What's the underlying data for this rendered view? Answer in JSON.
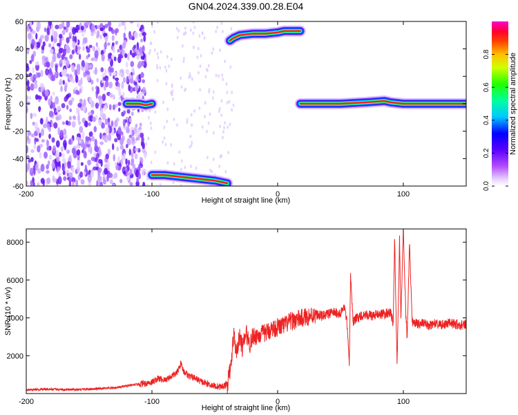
{
  "title": "GN04.2024.339.00.28.E04",
  "chart_data": [
    {
      "type": "heatmap",
      "xlabel": "Height of straight line (km)",
      "ylabel": "Frequency (Hz)",
      "xlim": [
        -200,
        150
      ],
      "ylim": [
        -60,
        60
      ],
      "x_ticks": [
        -200,
        -100,
        0,
        100
      ],
      "y_ticks": [
        -60,
        -40,
        -20,
        0,
        20,
        40,
        60
      ],
      "colorbar": {
        "label": "Normalized spectral amplitude",
        "range": [
          0,
          1
        ],
        "ticks": [
          0.0,
          0.2,
          0.4,
          0.6,
          0.8
        ],
        "tick_labels": [
          "0.0",
          "0.2",
          "0.4",
          "0.6",
          "0.8"
        ]
      },
      "tracks": [
        {
          "x": [
            -120,
            -115,
            -110,
            -105,
            -100
          ],
          "y": [
            0,
            0,
            0,
            -1,
            0
          ]
        },
        {
          "x": [
            -100,
            -90,
            -80,
            -70,
            -60,
            -50,
            -40
          ],
          "y": [
            -52,
            -52,
            -53,
            -54,
            -55,
            -56,
            -58
          ]
        },
        {
          "x": [
            -38,
            -35,
            -30,
            -20,
            -10,
            0,
            5,
            18
          ],
          "y": [
            46,
            48,
            50,
            51,
            51,
            52,
            53,
            53
          ]
        },
        {
          "x": [
            18,
            30,
            50,
            70,
            85,
            90,
            100,
            105,
            120,
            150
          ],
          "y": [
            0,
            0,
            0,
            1,
            2,
            1,
            0,
            0,
            0,
            0
          ]
        }
      ]
    },
    {
      "type": "line",
      "xlabel": "Height of straight line (km)",
      "ylabel": "SNR (10 * v/v)",
      "xlim": [
        -200,
        150
      ],
      "ylim": [
        0,
        8700
      ],
      "x_ticks": [
        -200,
        -100,
        0,
        100
      ],
      "y_ticks": [
        2000,
        4000,
        6000,
        8000
      ],
      "color": "#ee2222",
      "series": [
        {
          "x": [
            -200,
            -190,
            -180,
            -170,
            -160,
            -150,
            -140,
            -130,
            -120,
            -110,
            -100,
            -95,
            -90,
            -85,
            -80,
            -77,
            -75,
            -70,
            -65,
            -60,
            -55,
            -50,
            -45,
            -40,
            -37,
            -35,
            -33,
            -30,
            -28,
            -25,
            -22,
            -20,
            -15,
            -10,
            -5,
            0,
            5,
            10,
            15,
            20,
            25,
            30,
            35,
            40,
            45,
            50,
            53,
            55,
            57,
            58,
            60,
            65,
            70,
            75,
            80,
            85,
            90,
            92,
            93,
            95,
            97,
            98,
            100,
            102,
            103,
            105,
            107,
            110,
            115,
            120,
            125,
            130,
            135,
            140,
            145,
            150
          ],
          "y": [
            200,
            220,
            230,
            200,
            210,
            240,
            260,
            300,
            400,
            500,
            600,
            800,
            700,
            900,
            1100,
            1600,
            1200,
            900,
            800,
            600,
            500,
            400,
            350,
            500,
            1500,
            3200,
            2200,
            3000,
            2400,
            3200,
            2600,
            3000,
            3100,
            3200,
            3400,
            3500,
            3600,
            3800,
            3900,
            4000,
            4100,
            4200,
            4100,
            4200,
            4300,
            4200,
            4600,
            3800,
            1500,
            6300,
            3800,
            4100,
            4200,
            4100,
            4200,
            4200,
            4300,
            3600,
            8400,
            1400,
            8100,
            4000,
            8700,
            4200,
            3000,
            8000,
            3800,
            3700,
            3700,
            3600,
            3700,
            3600,
            3700,
            3700,
            3600,
            3700
          ]
        }
      ]
    }
  ]
}
